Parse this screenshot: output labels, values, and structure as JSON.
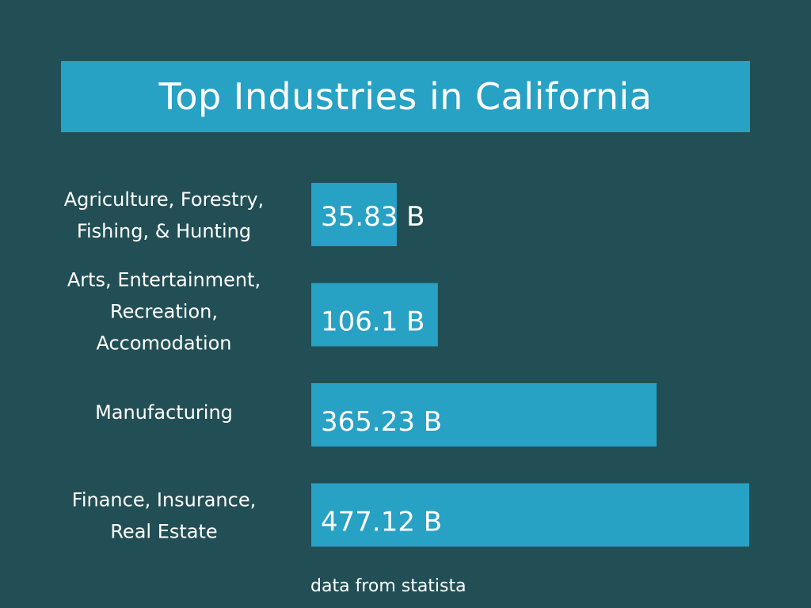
{
  "chart_data": {
    "type": "bar",
    "orientation": "horizontal",
    "title": "Top Industries in California",
    "categories": [
      [
        "Agriculture, Forestry,",
        "Fishing, & Hunting"
      ],
      [
        "Arts, Entertainment,",
        "Recreation,",
        "Accomodation"
      ],
      [
        "Manufacturing"
      ],
      [
        "Finance, Insurance,",
        "Real Estate"
      ]
    ],
    "values": [
      35.83,
      106.1,
      365.23,
      477.12
    ],
    "value_labels": [
      "35.83 B",
      "106.1 B",
      "365.23 B",
      "477.12 B"
    ],
    "unit": "B",
    "xlim": [
      0,
      477.12
    ],
    "grid": false,
    "legend": "none",
    "colors": {
      "background": "#224f55",
      "bar": "#27a1c4",
      "text": "#ffffff"
    }
  },
  "footnote": "data from statista"
}
